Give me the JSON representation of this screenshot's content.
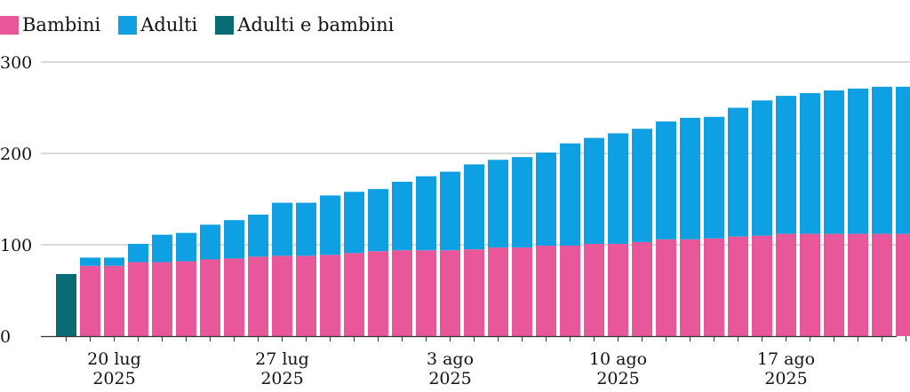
{
  "legend": [
    {
      "label": "Bambini",
      "color": "#e8579a"
    },
    {
      "label": "Adulti",
      "color": "#0ea0e2"
    },
    {
      "label": "Adulti e bambini",
      "color": "#096b74"
    }
  ],
  "chart_data": {
    "type": "bar",
    "stacked": true,
    "title": "",
    "xlabel": "",
    "ylabel": "",
    "ylim": [
      0,
      300
    ],
    "yticks": [
      0,
      100,
      200,
      300
    ],
    "grid": true,
    "legend_position": "top-left",
    "x_tick_labels": [
      {
        "index": 2,
        "line1": "20 lug",
        "line2": "2025"
      },
      {
        "index": 9,
        "line1": "27 lug",
        "line2": "2025"
      },
      {
        "index": 16,
        "line1": "3 ago",
        "line2": "2025"
      },
      {
        "index": 23,
        "line1": "10 ago",
        "line2": "2025"
      },
      {
        "index": 30,
        "line1": "17 ago",
        "line2": "2025"
      }
    ],
    "categories": [
      "18 lug",
      "19 lug",
      "20 lug",
      "21 lug",
      "22 lug",
      "23 lug",
      "24 lug",
      "25 lug",
      "26 lug",
      "27 lug",
      "28 lug",
      "29 lug",
      "30 lug",
      "31 lug",
      "1 ago",
      "2 ago",
      "3 ago",
      "4 ago",
      "5 ago",
      "6 ago",
      "7 ago",
      "8 ago",
      "9 ago",
      "10 ago",
      "11 ago",
      "12 ago",
      "13 ago",
      "14 ago",
      "15 ago",
      "16 ago",
      "17 ago",
      "18 ago",
      "19 ago",
      "20 ago",
      "21 ago",
      "22 ago",
      "23 ago"
    ],
    "series": [
      {
        "name": "Adulti e bambini",
        "color": "#096b74",
        "values": [
          68,
          0,
          0,
          0,
          0,
          0,
          0,
          0,
          0,
          0,
          0,
          0,
          0,
          0,
          0,
          0,
          0,
          0,
          0,
          0,
          0,
          0,
          0,
          0,
          0,
          0,
          0,
          0,
          0,
          0,
          0,
          0,
          0,
          0,
          0,
          0,
          0
        ]
      },
      {
        "name": "Bambini",
        "color": "#e8579a",
        "values": [
          0,
          77,
          77,
          81,
          81,
          82,
          84,
          85,
          87,
          88,
          88,
          89,
          91,
          93,
          94,
          94,
          94,
          95,
          97,
          97,
          99,
          99,
          101,
          101,
          103,
          106,
          106,
          107,
          109,
          110,
          112,
          112,
          112,
          112,
          112,
          112,
          112
        ]
      },
      {
        "name": "Adulti",
        "color": "#0ea0e2",
        "values": [
          0,
          9,
          9,
          20,
          30,
          31,
          38,
          42,
          46,
          58,
          58,
          65,
          67,
          68,
          75,
          81,
          86,
          93,
          96,
          99,
          102,
          112,
          116,
          121,
          124,
          129,
          133,
          133,
          141,
          148,
          151,
          154,
          157,
          159,
          161,
          161,
          161
        ]
      }
    ]
  }
}
